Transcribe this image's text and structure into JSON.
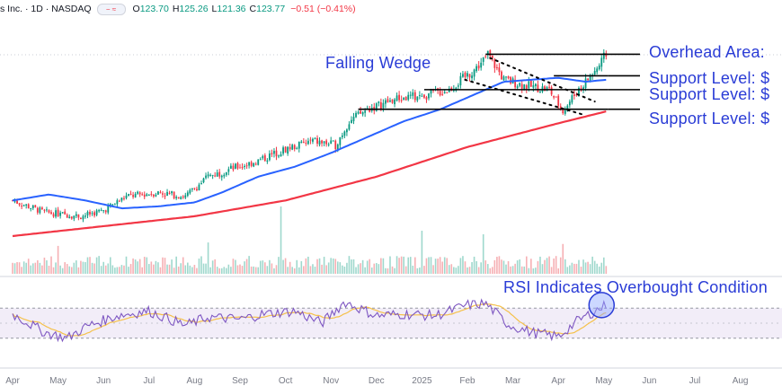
{
  "header": {
    "symbol_text": "s Inc. · 1D · NASDAQ",
    "ohlc": [
      {
        "label": "O",
        "value": "123.70"
      },
      {
        "label": "H",
        "value": "125.26"
      },
      {
        "label": "L",
        "value": "121.36"
      },
      {
        "label": "C",
        "value": "123.77"
      }
    ],
    "change": "−0.51 (−0.41%)",
    "toggle_icon": "indicator-toggle-icon"
  },
  "annotations": {
    "pattern": "Falling Wedge",
    "overhead": "Overhead Area: ",
    "support1": "Support Level: $",
    "support2": "Support Level: $",
    "support3": "Support Level: $",
    "rsi": "RSI Indicates Overbought Condition"
  },
  "colors": {
    "up": "#089981",
    "down": "#f23645",
    "ma50": "#2962ff",
    "ma200": "#f23645",
    "rsi": "#7e57c2",
    "rsi_signal": "#f5c14a",
    "annotation": "#2a3cd6",
    "rsi_band": "#ede7f6"
  },
  "chart_data": {
    "type": "candlestick",
    "x_axis_labels": [
      "Apr",
      "May",
      "Jun",
      "Jul",
      "Aug",
      "Sep",
      "Oct",
      "Nov",
      "Dec",
      "2025",
      "Feb",
      "Mar",
      "Apr",
      "May",
      "Jun",
      "Jul",
      "Aug"
    ],
    "price_keypoints": [
      {
        "month": 0,
        "price": 68
      },
      {
        "month": 0.7,
        "price": 62
      },
      {
        "month": 1.5,
        "price": 60
      },
      {
        "month": 2.0,
        "price": 63
      },
      {
        "month": 2.5,
        "price": 70
      },
      {
        "month": 3.2,
        "price": 72
      },
      {
        "month": 3.8,
        "price": 70
      },
      {
        "month": 4.3,
        "price": 80
      },
      {
        "month": 4.8,
        "price": 84
      },
      {
        "month": 5.4,
        "price": 88
      },
      {
        "month": 6.0,
        "price": 94
      },
      {
        "month": 6.6,
        "price": 98
      },
      {
        "month": 7.1,
        "price": 96
      },
      {
        "month": 7.4,
        "price": 108
      },
      {
        "month": 7.8,
        "price": 114
      },
      {
        "month": 8.4,
        "price": 119
      },
      {
        "month": 9.0,
        "price": 121
      },
      {
        "month": 9.6,
        "price": 124
      },
      {
        "month": 10.2,
        "price": 135
      },
      {
        "month": 10.45,
        "price": 142
      },
      {
        "month": 10.8,
        "price": 129
      },
      {
        "month": 11.3,
        "price": 126
      },
      {
        "month": 11.8,
        "price": 124
      },
      {
        "month": 12.1,
        "price": 113
      },
      {
        "month": 12.4,
        "price": 123
      },
      {
        "month": 12.9,
        "price": 136
      },
      {
        "month": 13.05,
        "price": 142
      }
    ],
    "support_lines": [
      {
        "price": 141.9,
        "from_month": 10.4,
        "to_month": 13.05,
        "label": "overhead"
      },
      {
        "price": 131.0,
        "from_month": 11.9,
        "to_month": 13.1,
        "label": "support1"
      },
      {
        "price": 124.0,
        "from_month": 9.05,
        "to_month": 13.1,
        "label": "support2"
      },
      {
        "price": 114.1,
        "from_month": 7.6,
        "to_month": 13.1,
        "label": "support3"
      }
    ],
    "ma50_keypoints": [
      {
        "month": 0,
        "price": 68
      },
      {
        "month": 0.8,
        "price": 71
      },
      {
        "month": 1.6,
        "price": 68
      },
      {
        "month": 2.4,
        "price": 64
      },
      {
        "month": 3.2,
        "price": 65
      },
      {
        "month": 4.0,
        "price": 67
      },
      {
        "month": 4.6,
        "price": 72
      },
      {
        "month": 5.4,
        "price": 80
      },
      {
        "month": 6.2,
        "price": 85
      },
      {
        "month": 7.0,
        "price": 92
      },
      {
        "month": 7.8,
        "price": 100
      },
      {
        "month": 8.6,
        "price": 108
      },
      {
        "month": 9.4,
        "price": 114
      },
      {
        "month": 10.2,
        "price": 122
      },
      {
        "month": 10.8,
        "price": 128
      },
      {
        "month": 11.4,
        "price": 129
      },
      {
        "month": 12.0,
        "price": 130
      },
      {
        "month": 12.6,
        "price": 128
      },
      {
        "month": 13.05,
        "price": 129
      }
    ],
    "ma200_keypoints": [
      {
        "month": 0,
        "price": 50
      },
      {
        "month": 2.0,
        "price": 55
      },
      {
        "month": 4.0,
        "price": 60
      },
      {
        "month": 6.0,
        "price": 68
      },
      {
        "month": 8.0,
        "price": 80
      },
      {
        "month": 10.0,
        "price": 95
      },
      {
        "month": 12.0,
        "price": 107
      },
      {
        "month": 13.05,
        "price": 113
      }
    ],
    "volume_spike_months": [
      1.0,
      4.3,
      5.9,
      9.0,
      10.35,
      12.1
    ],
    "rsi_keypoints": [
      {
        "month": 0,
        "value": 62
      },
      {
        "month": 0.7,
        "value": 38
      },
      {
        "month": 1.2,
        "value": 30
      },
      {
        "month": 1.6,
        "value": 45
      },
      {
        "month": 2.3,
        "value": 60
      },
      {
        "month": 3.0,
        "value": 66
      },
      {
        "month": 3.8,
        "value": 47
      },
      {
        "month": 4.3,
        "value": 58
      },
      {
        "month": 5.0,
        "value": 55
      },
      {
        "month": 5.5,
        "value": 62
      },
      {
        "month": 6.2,
        "value": 66
      },
      {
        "month": 6.8,
        "value": 50
      },
      {
        "month": 7.3,
        "value": 78
      },
      {
        "month": 8.0,
        "value": 60
      },
      {
        "month": 8.6,
        "value": 62
      },
      {
        "month": 9.3,
        "value": 60
      },
      {
        "month": 10.0,
        "value": 74
      },
      {
        "month": 10.4,
        "value": 76
      },
      {
        "month": 10.9,
        "value": 48
      },
      {
        "month": 11.4,
        "value": 38
      },
      {
        "month": 12.0,
        "value": 32
      },
      {
        "month": 12.4,
        "value": 52
      },
      {
        "month": 12.8,
        "value": 66
      },
      {
        "month": 13.05,
        "value": 74
      }
    ],
    "rsi_band": [
      30,
      70
    ]
  }
}
